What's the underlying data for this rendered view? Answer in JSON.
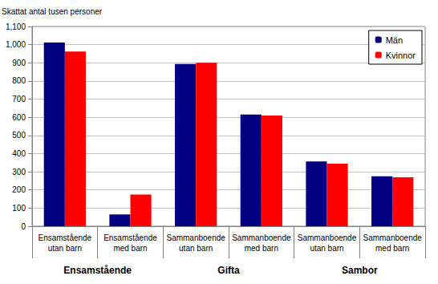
{
  "chart_data": {
    "type": "bar",
    "ylabel": "Skattat antal tusen personer",
    "categories": [
      "Ensamstående\nutan barn",
      "Ensamstående\nmed barn",
      "Sammanboende\nutan barn",
      "Sammanboende\nmed barn",
      "Sammanboende\nutan barn",
      "Sammanboende\nmed barn"
    ],
    "groups": [
      {
        "name": "Ensamstående",
        "span": 2
      },
      {
        "name": "Gifta",
        "span": 2
      },
      {
        "name": "Sambor",
        "span": 2
      }
    ],
    "series": [
      {
        "name": "Män",
        "color": "#000080",
        "values": [
          1012,
          65,
          893,
          615,
          357,
          275
        ]
      },
      {
        "name": "Kvinnor",
        "color": "#ff0000",
        "values": [
          962,
          175,
          900,
          610,
          345,
          270
        ]
      }
    ],
    "ylim": [
      0,
      1100
    ],
    "yticks": [
      0,
      100,
      200,
      300,
      400,
      500,
      600,
      700,
      800,
      900,
      1000,
      1100
    ],
    "grid": true,
    "legend": "upper right"
  }
}
